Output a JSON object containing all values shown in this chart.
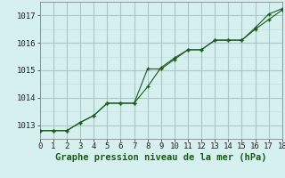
{
  "title": "Graphe pression niveau de la mer (hPa)",
  "x_line1": [
    0,
    1,
    2,
    3,
    4,
    5,
    6,
    7,
    8,
    9,
    10,
    11,
    12,
    13,
    14,
    15,
    16,
    17,
    18
  ],
  "y_line1": [
    1012.8,
    1012.8,
    1012.8,
    1013.1,
    1013.35,
    1013.8,
    1013.8,
    1013.8,
    1015.05,
    1015.05,
    1015.4,
    1015.75,
    1015.75,
    1016.1,
    1016.1,
    1016.1,
    1016.5,
    1016.85,
    1017.2
  ],
  "x_line2": [
    0,
    1,
    2,
    3,
    4,
    5,
    6,
    7,
    8,
    9,
    10,
    11,
    12,
    13,
    14,
    15,
    16,
    17,
    18
  ],
  "y_line2": [
    1012.8,
    1012.8,
    1012.8,
    1013.1,
    1013.35,
    1013.8,
    1013.8,
    1013.8,
    1014.4,
    1015.1,
    1015.45,
    1015.75,
    1015.75,
    1016.1,
    1016.1,
    1016.1,
    1016.55,
    1017.05,
    1017.25
  ],
  "line_color": "#1a5c1a",
  "marker": "+",
  "bg_color": "#d6f0f0",
  "grid_major_color": "#b8d8d8",
  "grid_minor_color": "#c8e8e8",
  "xlim": [
    0,
    18
  ],
  "ylim": [
    1012.5,
    1017.5
  ],
  "yticks": [
    1013,
    1014,
    1015,
    1016,
    1017
  ],
  "xticks": [
    0,
    1,
    2,
    3,
    4,
    5,
    6,
    7,
    8,
    9,
    10,
    11,
    12,
    13,
    14,
    15,
    16,
    17,
    18
  ],
  "title_fontsize": 7.5,
  "tick_fontsize": 6.5,
  "line_width": 0.8,
  "marker_size": 3.5
}
